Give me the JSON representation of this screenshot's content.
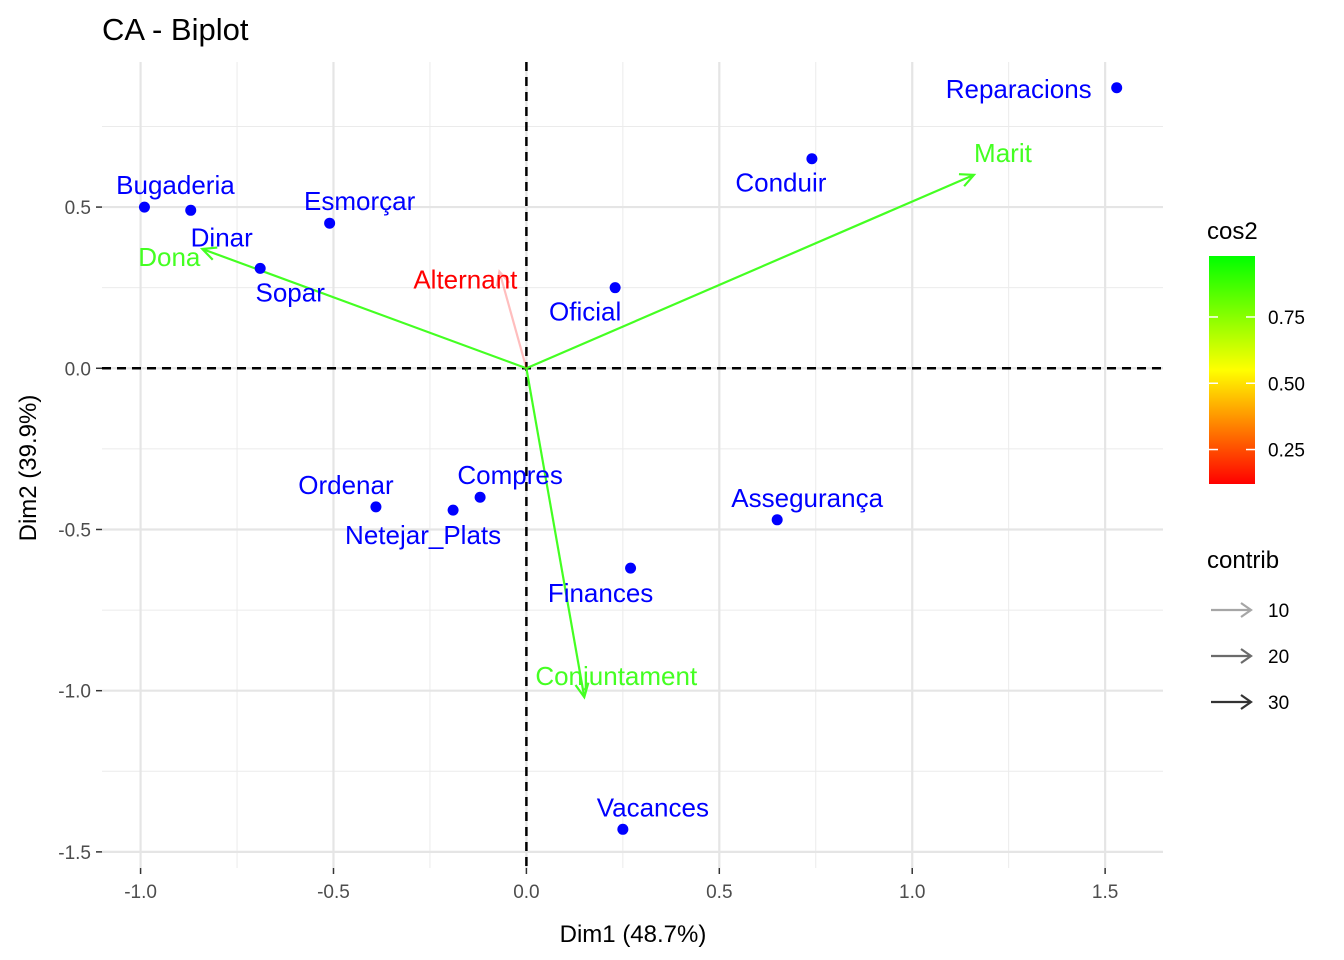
{
  "chart_data": {
    "type": "scatter",
    "title": "CA - Biplot",
    "xlabel": "Dim1 (48.7%)",
    "ylabel": "Dim2 (39.9%)",
    "xlim": [
      -1.1,
      1.65
    ],
    "ylim": [
      -1.55,
      0.95
    ],
    "x_ticks": [
      -1.0,
      -0.5,
      0.0,
      0.5,
      1.0,
      1.5
    ],
    "x_tick_labels": [
      "-1.0",
      "-0.5",
      "0.0",
      "0.5",
      "1.0",
      "1.5"
    ],
    "y_ticks": [
      -1.5,
      -1.0,
      -0.5,
      0.0,
      0.5
    ],
    "y_tick_labels": [
      "-1.5",
      "-1.0",
      "-0.5",
      "0.0",
      "0.5"
    ],
    "grid": true,
    "point_color": "#0000FF",
    "points": [
      {
        "label": "Reparacions",
        "x": 1.53,
        "y": 0.87
      },
      {
        "label": "Conduir",
        "x": 0.74,
        "y": 0.65
      },
      {
        "label": "Bugaderia",
        "x": -0.99,
        "y": 0.5
      },
      {
        "label": "Dinar",
        "x": -0.87,
        "y": 0.49
      },
      {
        "label": "Esmorçar",
        "x": -0.51,
        "y": 0.45
      },
      {
        "label": "Sopar",
        "x": -0.69,
        "y": 0.31
      },
      {
        "label": "Oficial",
        "x": 0.23,
        "y": 0.25
      },
      {
        "label": "Ordenar",
        "x": -0.39,
        "y": -0.43
      },
      {
        "label": "Compres",
        "x": -0.12,
        "y": -0.4
      },
      {
        "label": "Netejar_Plats",
        "x": -0.19,
        "y": -0.44
      },
      {
        "label": "Assegurança",
        "x": 0.65,
        "y": -0.47
      },
      {
        "label": "Finances",
        "x": 0.27,
        "y": -0.62
      },
      {
        "label": "Vacances",
        "x": 0.25,
        "y": -1.43
      }
    ],
    "arrows": [
      {
        "label": "Marit",
        "x": 1.16,
        "y": 0.6,
        "cos2": 0.97,
        "color": "#44FF22",
        "contrib": 30
      },
      {
        "label": "Dona",
        "x": -0.84,
        "y": 0.37,
        "cos2": 0.95,
        "color": "#44FF22",
        "contrib": 25
      },
      {
        "label": "Conjuntament",
        "x": 0.15,
        "y": -1.02,
        "cos2": 0.95,
        "color": "#44FF22",
        "contrib": 30
      },
      {
        "label": "Alternant",
        "x": -0.07,
        "y": 0.3,
        "cos2": 0.12,
        "color": "#FF0000",
        "contrib": 5
      }
    ],
    "legend": {
      "cos2": {
        "title": "cos2",
        "ticks": [
          "0.25",
          "0.50",
          "0.75"
        ],
        "tick_values": [
          0.25,
          0.5,
          0.75
        ],
        "range": [
          0.12,
          0.98
        ],
        "colors": [
          "#FF0000",
          "#FFFF00",
          "#00FF00"
        ]
      },
      "contrib": {
        "title": "contrib",
        "items": [
          {
            "label": "10",
            "color": "#A6A6A6"
          },
          {
            "label": "20",
            "color": "#6B6B6B"
          },
          {
            "label": "30",
            "color": "#333333"
          }
        ]
      },
      "placement": "right"
    }
  }
}
